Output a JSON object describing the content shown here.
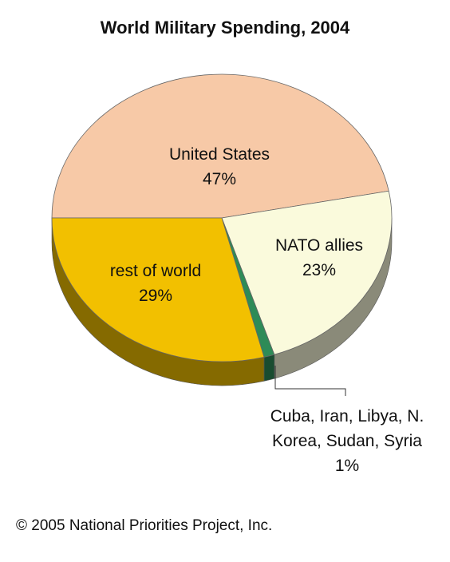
{
  "chart_data": {
    "type": "pie",
    "title": "World Military Spending, 2004",
    "categories": [
      "United States",
      "NATO allies",
      "Cuba, Iran, Libya, N. Korea, Sudan, Syria",
      "rest of world"
    ],
    "values": [
      47,
      23,
      1,
      29
    ],
    "value_labels": [
      "47%",
      "23%",
      "1%",
      "29%"
    ],
    "colors": [
      "#f7c9a7",
      "#fafadc",
      "#2e8b57",
      "#f2c000"
    ],
    "source": "© 2005 National Priorities Project, Inc."
  }
}
